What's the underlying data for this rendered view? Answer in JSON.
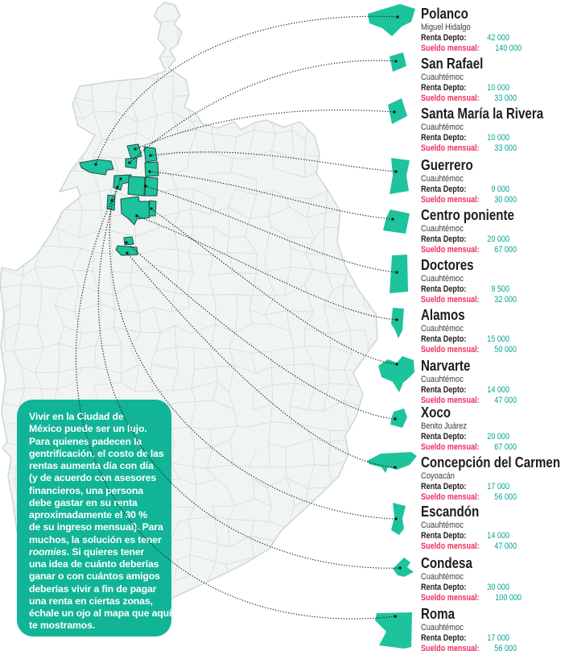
{
  "colors": {
    "highlight_teal": "#1dc39c",
    "intro_box_teal": "#12b497",
    "value_teal": "#00a692",
    "salary_label_red": "#ee2d5c",
    "title_black": "#1f1c1d",
    "map_fill": "#f0f4f2",
    "map_lines": "#cfdad5",
    "connector_black": "#1a1a1a"
  },
  "intro": {
    "italic_word": "roomies",
    "lines": [
      "Vivir en la Ciudad de",
      "México puede ser un lujo.",
      "Para quienes padecen la",
      "gentrificación, el costo de las",
      "rentas aumenta día con día",
      "(y de acuerdo con asesores",
      "financieros, una persona",
      "debe gastar en su renta",
      "aproximadamente el 30 %",
      "de su ingreso mensual). Para",
      "muchos, la solución es tener",
      "roomies. Si quieres tener",
      "una idea de cuánto deberías",
      "ganar o con cuántos amigos",
      "deberías vivir a fin de pagar",
      "una renta en ciertas zonas,",
      "échale un ojo al mapa que aquí",
      "te mostramos."
    ]
  },
  "labels": {
    "rent": "Renta Depto:",
    "salary": "Sueldo mensual:"
  },
  "entries": [
    {
      "name": "Polanco",
      "borough": "Miguel Hidalgo",
      "rent": "42 000",
      "salary": "140 000"
    },
    {
      "name": "San Rafael",
      "borough": "Cuauhtémoc",
      "rent": "10 000",
      "salary": "33 000"
    },
    {
      "name": "Santa María la Rivera",
      "borough": "Cuauhtémoc",
      "rent": "10 000",
      "salary": "33 000"
    },
    {
      "name": "Guerrero",
      "borough": "Cuauhtémoc",
      "rent": "9 000",
      "salary": "30 000"
    },
    {
      "name": "Centro poniente",
      "borough": "Cuauhtémoc",
      "rent": "20 000",
      "salary": "67 000"
    },
    {
      "name": "Doctores",
      "borough": "Cuauhtémoc",
      "rent": "9 500",
      "salary": "32 000"
    },
    {
      "name": "Alamos",
      "borough": "Cuauhtémoc",
      "rent": "15 000",
      "salary": "50 000"
    },
    {
      "name": "Narvarte",
      "borough": "Cuauhtémoc",
      "rent": "14 000",
      "salary": "47 000"
    },
    {
      "name": "Xoco",
      "borough": "Benito Juárez",
      "rent": "20 000",
      "salary": "67 000"
    },
    {
      "name": "Concepción del Carmen",
      "borough": "Coyoacán",
      "rent": "17 000",
      "salary": "56 000"
    },
    {
      "name": "Escandón",
      "borough": "Cuauhtémoc",
      "rent": "14 000",
      "salary": "47 000"
    },
    {
      "name": "Condesa",
      "borough": "Cuauhtémoc",
      "rent": "30 000",
      "salary": "100 000"
    },
    {
      "name": "Roma",
      "borough": "Cuauhtémoc",
      "rent": "17 000",
      "salary": "56 000"
    }
  ]
}
